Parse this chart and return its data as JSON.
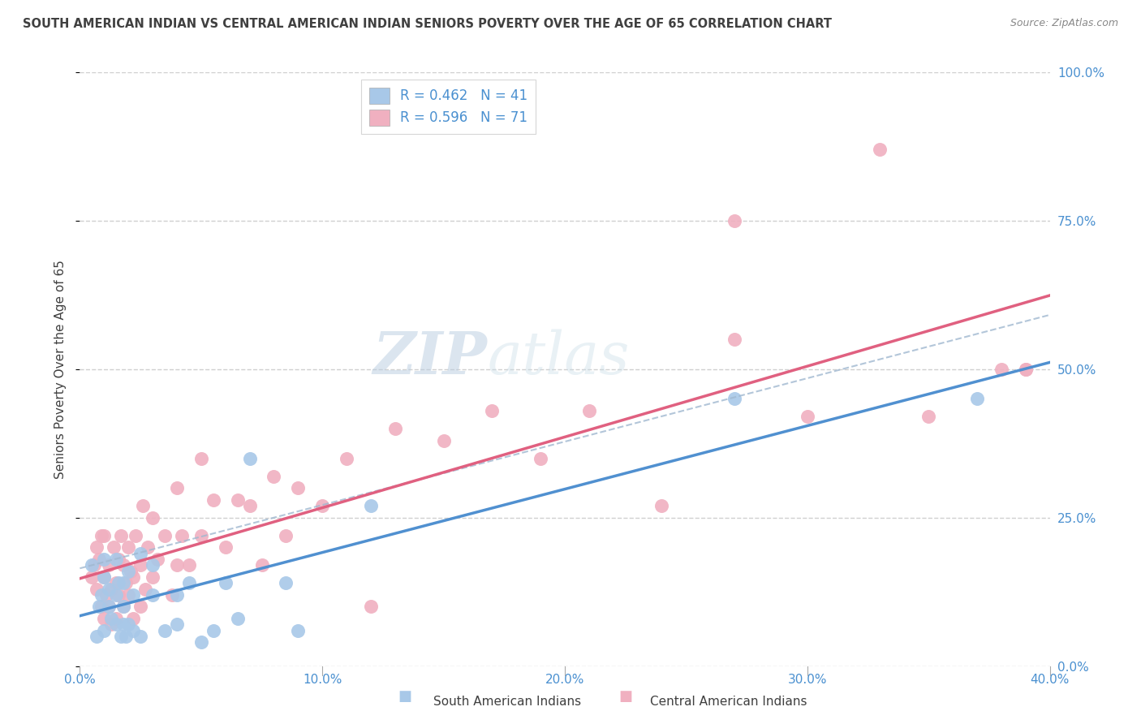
{
  "title": "SOUTH AMERICAN INDIAN VS CENTRAL AMERICAN INDIAN SENIORS POVERTY OVER THE AGE OF 65 CORRELATION CHART",
  "source": "Source: ZipAtlas.com",
  "xlabel_labels": [
    "0.0%",
    "",
    "10.0%",
    "",
    "20.0%",
    "",
    "30.0%",
    "",
    "40.0%"
  ],
  "xlabel_values": [
    0,
    0.05,
    0.1,
    0.15,
    0.2,
    0.25,
    0.3,
    0.35,
    0.4
  ],
  "xlabel_tick_labels": [
    "0.0%",
    "10.0%",
    "20.0%",
    "30.0%",
    "40.0%"
  ],
  "xlabel_tick_values": [
    0,
    0.1,
    0.2,
    0.3,
    0.4
  ],
  "ylabel_labels": [
    "0.0%",
    "25.0%",
    "50.0%",
    "75.0%",
    "100.0%"
  ],
  "ylabel_values": [
    0,
    0.25,
    0.5,
    0.75,
    1.0
  ],
  "ylabel_label": "Seniors Poverty Over the Age of 65",
  "legend_label1": "South American Indians",
  "legend_label2": "Central American Indians",
  "legend_r1": "R = 0.462",
  "legend_n1": "N = 41",
  "legend_r2": "R = 0.596",
  "legend_n2": "N = 71",
  "color_blue": "#a8c8e8",
  "color_pink": "#f0b0c0",
  "color_trendline_blue": "#5090d0",
  "color_trendline_dashed": "#a0b8d0",
  "color_trendline_pink": "#e06080",
  "watermark_zip": "ZIP",
  "watermark_atlas": "atlas",
  "xlim": [
    0,
    0.4
  ],
  "ylim": [
    0,
    1.0
  ],
  "south_american_x": [
    0.005,
    0.007,
    0.008,
    0.009,
    0.01,
    0.01,
    0.01,
    0.012,
    0.012,
    0.013,
    0.015,
    0.015,
    0.015,
    0.016,
    0.017,
    0.018,
    0.018,
    0.018,
    0.019,
    0.02,
    0.02,
    0.022,
    0.022,
    0.025,
    0.025,
    0.03,
    0.03,
    0.035,
    0.04,
    0.04,
    0.045,
    0.05,
    0.055,
    0.06,
    0.065,
    0.07,
    0.085,
    0.09,
    0.12,
    0.27,
    0.37
  ],
  "south_american_y": [
    0.17,
    0.05,
    0.1,
    0.12,
    0.15,
    0.18,
    0.06,
    0.1,
    0.13,
    0.08,
    0.07,
    0.12,
    0.18,
    0.14,
    0.05,
    0.07,
    0.1,
    0.14,
    0.05,
    0.07,
    0.16,
    0.06,
    0.12,
    0.05,
    0.19,
    0.12,
    0.17,
    0.06,
    0.07,
    0.12,
    0.14,
    0.04,
    0.06,
    0.14,
    0.08,
    0.35,
    0.14,
    0.06,
    0.27,
    0.45,
    0.45
  ],
  "central_american_x": [
    0.005,
    0.006,
    0.007,
    0.007,
    0.008,
    0.009,
    0.009,
    0.01,
    0.01,
    0.01,
    0.011,
    0.012,
    0.012,
    0.013,
    0.013,
    0.014,
    0.015,
    0.015,
    0.016,
    0.016,
    0.017,
    0.018,
    0.018,
    0.019,
    0.02,
    0.02,
    0.021,
    0.022,
    0.022,
    0.023,
    0.025,
    0.025,
    0.026,
    0.027,
    0.028,
    0.03,
    0.03,
    0.032,
    0.035,
    0.038,
    0.04,
    0.04,
    0.042,
    0.045,
    0.05,
    0.05,
    0.055,
    0.06,
    0.065,
    0.07,
    0.075,
    0.08,
    0.085,
    0.09,
    0.1,
    0.11,
    0.12,
    0.13,
    0.15,
    0.17,
    0.19,
    0.21,
    0.24,
    0.27,
    0.27,
    0.3,
    0.33,
    0.35,
    0.38,
    0.39,
    0.39
  ],
  "central_american_y": [
    0.15,
    0.17,
    0.13,
    0.2,
    0.18,
    0.1,
    0.22,
    0.08,
    0.15,
    0.22,
    0.12,
    0.1,
    0.17,
    0.07,
    0.13,
    0.2,
    0.08,
    0.14,
    0.12,
    0.18,
    0.22,
    0.1,
    0.17,
    0.14,
    0.12,
    0.2,
    0.16,
    0.08,
    0.15,
    0.22,
    0.1,
    0.17,
    0.27,
    0.13,
    0.2,
    0.15,
    0.25,
    0.18,
    0.22,
    0.12,
    0.17,
    0.3,
    0.22,
    0.17,
    0.35,
    0.22,
    0.28,
    0.2,
    0.28,
    0.27,
    0.17,
    0.32,
    0.22,
    0.3,
    0.27,
    0.35,
    0.1,
    0.4,
    0.38,
    0.43,
    0.35,
    0.43,
    0.27,
    0.75,
    0.55,
    0.42,
    0.87,
    0.42,
    0.5,
    0.5,
    0.5
  ],
  "background_color": "#ffffff",
  "grid_color": "#d0d0d0",
  "title_color": "#404040",
  "axis_label_color": "#4a90d0",
  "source_color": "#888888"
}
